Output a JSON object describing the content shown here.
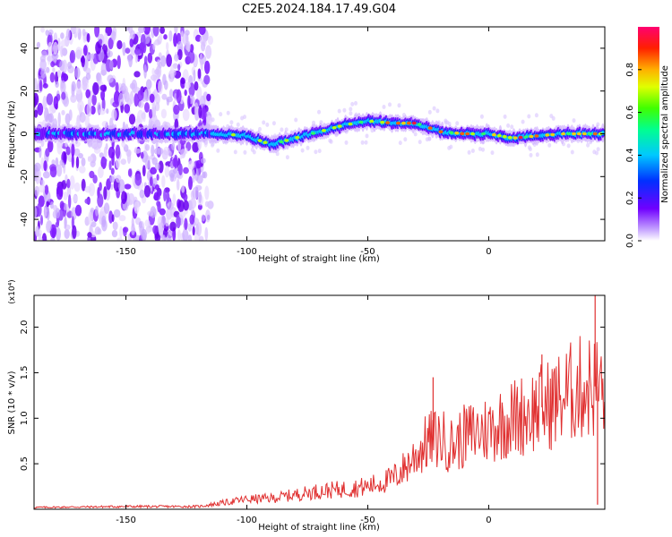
{
  "title": "C2E5.2024.184.17.49.G04",
  "chart_data": [
    {
      "type": "heatmap",
      "panel": "spectrogram",
      "xlabel": "Height of straight line (km)",
      "ylabel": "Frequency (Hz)",
      "xlim": [
        -188,
        48
      ],
      "ylim": [
        -50,
        50
      ],
      "xticks": [
        -150,
        -100,
        -50,
        0
      ],
      "yticks": [
        -40,
        -20,
        0,
        20,
        40
      ],
      "colorbar": {
        "label": "Normalized spectral amplitude",
        "range": [
          0,
          1
        ],
        "ticks": [
          "0.0",
          "0.2",
          "0.4",
          "0.6",
          "0.8"
        ],
        "colormap": "rainbow (violet-blue-cyan-green-yellow-orange-red-magenta)"
      },
      "ridge_center_hz": [
        {
          "x": -188,
          "y": 0
        },
        {
          "x": -125,
          "y": 0
        },
        {
          "x": -110,
          "y": 0
        },
        {
          "x": -100,
          "y": -1
        },
        {
          "x": -90,
          "y": -5
        },
        {
          "x": -80,
          "y": -2
        },
        {
          "x": -70,
          "y": 1
        },
        {
          "x": -60,
          "y": 4
        },
        {
          "x": -50,
          "y": 6
        },
        {
          "x": -40,
          "y": 5
        },
        {
          "x": -30,
          "y": 5
        },
        {
          "x": -20,
          "y": 1
        },
        {
          "x": -10,
          "y": 0
        },
        {
          "x": 0,
          "y": 0
        },
        {
          "x": 10,
          "y": -2
        },
        {
          "x": 20,
          "y": -1
        },
        {
          "x": 30,
          "y": 0
        },
        {
          "x": 40,
          "y": 0
        },
        {
          "x": 48,
          "y": 0
        }
      ],
      "noise_region_x": [
        -188,
        -115
      ]
    },
    {
      "type": "line",
      "panel": "snr",
      "xlabel": "Height of straight line (km)",
      "ylabel": "SNR (10 * v/v)",
      "multiplier": "(x10⁴)",
      "xlim": [
        -188,
        48
      ],
      "ylim": [
        0,
        2.35
      ],
      "xticks": [
        -150,
        -100,
        -50,
        0
      ],
      "yticks": [
        0.5,
        1.0,
        1.5,
        2.0
      ],
      "color": "#e03030",
      "series": [
        {
          "values": [
            {
              "x": -188,
              "y": 0.02
            },
            {
              "x": -150,
              "y": 0.03
            },
            {
              "x": -120,
              "y": 0.03
            },
            {
              "x": -110,
              "y": 0.07
            },
            {
              "x": -100,
              "y": 0.11
            },
            {
              "x": -90,
              "y": 0.12
            },
            {
              "x": -80,
              "y": 0.16
            },
            {
              "x": -70,
              "y": 0.2
            },
            {
              "x": -60,
              "y": 0.22
            },
            {
              "x": -50,
              "y": 0.25
            },
            {
              "x": -40,
              "y": 0.33
            },
            {
              "x": -35,
              "y": 0.45
            },
            {
              "x": -30,
              "y": 0.6
            },
            {
              "x": -25,
              "y": 0.75
            },
            {
              "x": -20,
              "y": 0.78
            },
            {
              "x": -15,
              "y": 0.7
            },
            {
              "x": -10,
              "y": 0.8
            },
            {
              "x": -5,
              "y": 0.85
            },
            {
              "x": 0,
              "y": 0.88
            },
            {
              "x": 5,
              "y": 0.95
            },
            {
              "x": 10,
              "y": 1.0
            },
            {
              "x": 15,
              "y": 1.05
            },
            {
              "x": 20,
              "y": 1.1
            },
            {
              "x": 25,
              "y": 1.15
            },
            {
              "x": 30,
              "y": 1.22
            },
            {
              "x": 35,
              "y": 1.3
            },
            {
              "x": 40,
              "y": 1.35
            },
            {
              "x": 45,
              "y": 1.35
            },
            {
              "x": 48,
              "y": 1.3
            }
          ]
        }
      ],
      "annotations": [
        {
          "x": -23,
          "y": 1.45
        },
        {
          "x": 22,
          "y": 1.7
        },
        {
          "x": 44,
          "y": 2.35
        },
        {
          "x": 45,
          "y": 0.05
        }
      ]
    }
  ]
}
